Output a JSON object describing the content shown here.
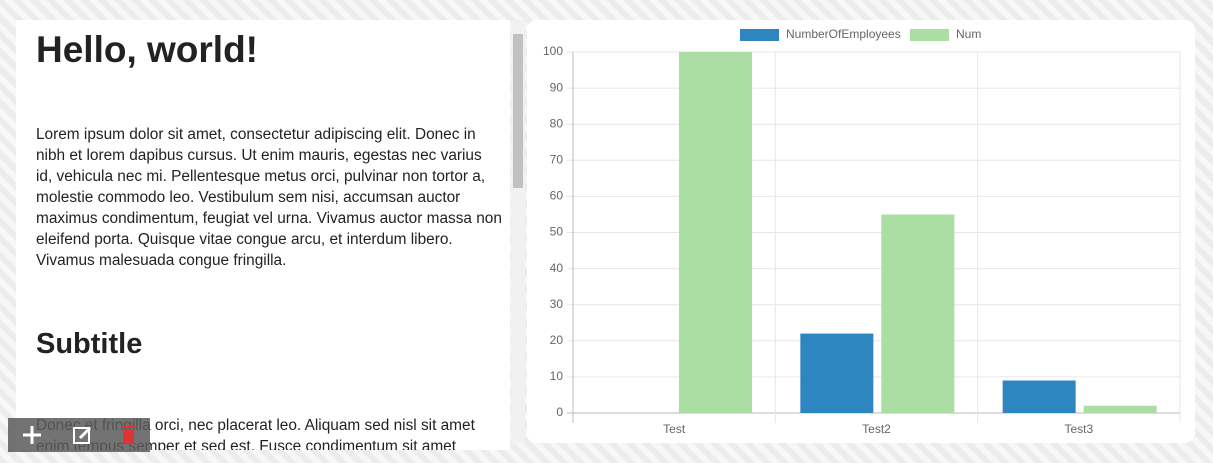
{
  "content": {
    "title": "Hello, world!",
    "paragraph1": "Lorem ipsum dolor sit amet, consectetur adipiscing elit. Donec in nibh et lorem dapibus cursus. Ut enim mauris, egestas nec varius id, vehicula nec mi. Pellentesque metus orci, pulvinar non tortor a, molestie commodo leo. Vestibulum sem nisi, accumsan auctor maximus condimentum, feugiat vel urna. Vivamus auctor massa non eleifend porta. Quisque vitae congue arcu, et interdum libero. Vivamus malesuada congue fringilla.",
    "subtitle": "Subtitle",
    "paragraph2": "Donec et fringilla orci, nec placerat leo. Aliquam sed nisl sit amet enim tempus semper et sed est. Fusce condimentum sit amet"
  },
  "chart_data": {
    "type": "bar",
    "categories": [
      "Test",
      "Test2",
      "Test3"
    ],
    "series": [
      {
        "name": "NumberOfEmployees",
        "color": "#2e86c1",
        "values": [
          0,
          22,
          9
        ]
      },
      {
        "name": "Num",
        "color": "#abdea3",
        "values": [
          100,
          55,
          2
        ]
      }
    ],
    "ylim": [
      0,
      100
    ],
    "yticks": [
      0,
      10,
      20,
      30,
      40,
      50,
      60,
      70,
      80,
      90,
      100
    ],
    "grid": true,
    "legend": "top"
  }
}
